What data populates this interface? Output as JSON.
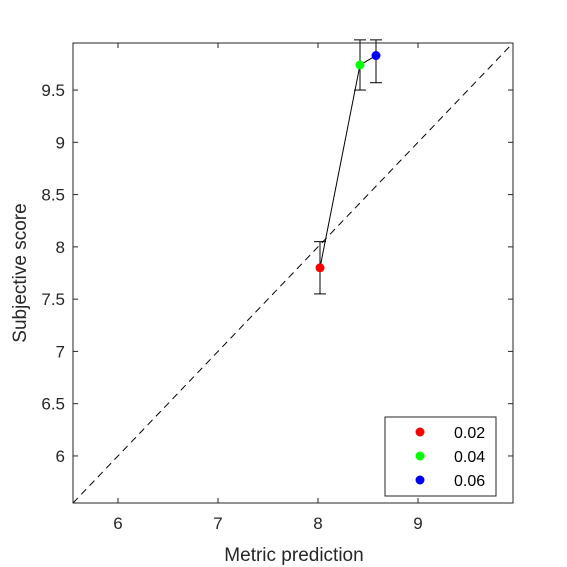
{
  "chart_data": {
    "type": "scatter",
    "xlabel": "Metric prediction",
    "ylabel": "Subjective score",
    "xlim": [
      5.55,
      9.95
    ],
    "ylim": [
      5.55,
      9.95
    ],
    "xticks": [
      6,
      7,
      8,
      9
    ],
    "yticks": [
      6,
      6.5,
      7,
      7.5,
      8,
      8.5,
      9,
      9.5
    ],
    "xtick_labels": [
      "6",
      "7",
      "8",
      "9"
    ],
    "ytick_labels": [
      "6",
      "6.5",
      "7",
      "7.5",
      "8",
      "8.5",
      "9",
      "9.5"
    ],
    "grid": false,
    "legend_position": "bottom-right",
    "reference_line": {
      "style": "dashed",
      "from": [
        5.55,
        5.55
      ],
      "to": [
        9.95,
        9.95
      ],
      "color": "#000000"
    },
    "connecting_line": {
      "color": "#000000"
    },
    "series": [
      {
        "name": "0.02",
        "x": 8.02,
        "y": 7.8,
        "err_low": 7.55,
        "err_high": 8.05,
        "color": "#ff0000"
      },
      {
        "name": "0.04",
        "x": 8.42,
        "y": 9.74,
        "err_low": 9.5,
        "err_high": 9.98,
        "color": "#00ff00"
      },
      {
        "name": "0.06",
        "x": 8.58,
        "y": 9.83,
        "err_low": 9.57,
        "err_high": 9.98,
        "color": "#0000ff"
      }
    ]
  }
}
